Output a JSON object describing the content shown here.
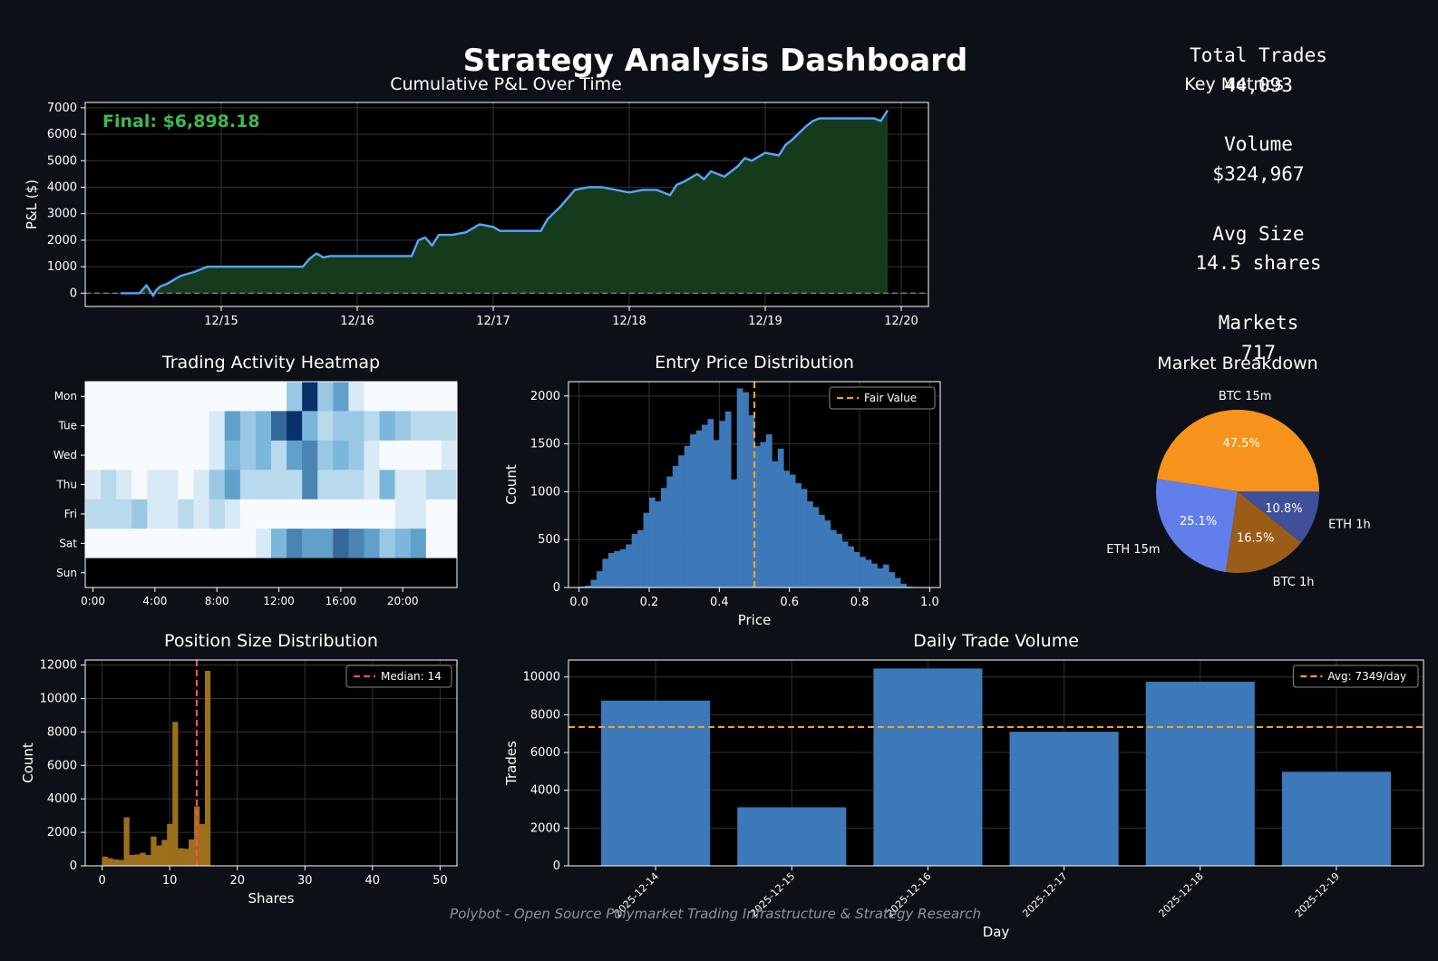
{
  "dashboard": {
    "title": "Strategy Analysis Dashboard",
    "footer": "Polybot - Open Source Polymarket Trading Infrastructure & Strategy Research"
  },
  "colors": {
    "background": "#0d1117",
    "plot_bg": "#000000",
    "pnl_line": "#58a6ff",
    "pnl_fill": "#163a1c",
    "final_text": "#3fb950",
    "bars_blue": "#3d78b8",
    "bars_gold": "#9b6f1c",
    "fair_value": "#f0a030",
    "median": "#f85149",
    "pie": [
      "#f7931a",
      "#627eea",
      "#9a5c16",
      "#3f4f9a"
    ]
  },
  "metrics": {
    "header": "Key Metrics",
    "items": [
      {
        "label": "Total Trades",
        "value": "44,093"
      },
      {
        "label": "Volume",
        "value": "$324,967"
      },
      {
        "label": "Avg Size",
        "value": "14.5 shares"
      },
      {
        "label": "Markets",
        "value": "717"
      }
    ]
  },
  "chart_data": [
    {
      "id": "pnl",
      "type": "area",
      "title": "Cumulative P&L Over Time",
      "ylabel": "P&L ($)",
      "annotation": "Final: $6,898.18",
      "ylim": [
        -500,
        7200
      ],
      "xlim": [
        14.0,
        20.2
      ],
      "x_ticks": [
        {
          "v": 15,
          "label": "12/15"
        },
        {
          "v": 16,
          "label": "12/16"
        },
        {
          "v": 17,
          "label": "12/17"
        },
        {
          "v": 18,
          "label": "12/18"
        },
        {
          "v": 19,
          "label": "12/19"
        },
        {
          "v": 20,
          "label": "12/20"
        }
      ],
      "y_ticks": [
        0,
        1000,
        2000,
        3000,
        4000,
        5000,
        6000,
        7000
      ],
      "baseline": 0,
      "x": [
        14.26,
        14.4,
        14.45,
        14.5,
        14.52,
        14.55,
        14.6,
        14.65,
        14.7,
        14.8,
        14.9,
        14.96,
        15.0,
        15.2,
        15.6,
        15.65,
        15.7,
        15.75,
        15.8,
        16.1,
        16.4,
        16.45,
        16.5,
        16.55,
        16.6,
        16.7,
        16.8,
        16.9,
        17.0,
        17.05,
        17.1,
        17.35,
        17.4,
        17.5,
        17.6,
        17.7,
        17.8,
        18.0,
        18.1,
        18.2,
        18.3,
        18.35,
        18.4,
        18.5,
        18.55,
        18.6,
        18.7,
        18.8,
        18.85,
        18.9,
        19.0,
        19.1,
        19.15,
        19.2,
        19.3,
        19.35,
        19.4,
        19.6,
        19.8,
        19.85,
        19.9
      ],
      "y": [
        0,
        0,
        300,
        -100,
        100,
        250,
        350,
        500,
        650,
        800,
        1000,
        1000,
        1000,
        1000,
        1000,
        1300,
        1500,
        1350,
        1400,
        1400,
        1400,
        2000,
        2100,
        1800,
        2200,
        2200,
        2300,
        2600,
        2500,
        2350,
        2350,
        2350,
        2800,
        3300,
        3900,
        4000,
        4000,
        3800,
        3900,
        3900,
        3700,
        4100,
        4200,
        4500,
        4300,
        4600,
        4400,
        4800,
        5100,
        5000,
        5300,
        5200,
        5600,
        5800,
        6300,
        6500,
        6600,
        6600,
        6600,
        6500,
        6900
      ]
    },
    {
      "id": "heatmap",
      "type": "heatmap",
      "title": "Trading Activity Heatmap",
      "rows": [
        "Mon",
        "Tue",
        "Wed",
        "Thu",
        "Fri",
        "Sat",
        "Sun"
      ],
      "x_ticks": [
        "0:00",
        "4:00",
        "8:00",
        "12:00",
        "16:00",
        "20:00"
      ],
      "x_tick_hours": [
        0,
        4,
        8,
        12,
        16,
        20
      ],
      "hours": 24,
      "values": [
        [
          0,
          0,
          0,
          0,
          0,
          0,
          0,
          0,
          0,
          0,
          0,
          0,
          0,
          3,
          9,
          3,
          5,
          1,
          0,
          0,
          0,
          0,
          0,
          0
        ],
        [
          0,
          0,
          0,
          0,
          0,
          0,
          0,
          0,
          1,
          5,
          3,
          4,
          7,
          9,
          4,
          2,
          3,
          3,
          2,
          4,
          3,
          2,
          2,
          2
        ],
        [
          0,
          0,
          0,
          0,
          0,
          0,
          0,
          0,
          1,
          4,
          3,
          4,
          2,
          5,
          6,
          3,
          4,
          3,
          1,
          0,
          0,
          0,
          0,
          1
        ],
        [
          1,
          2,
          1,
          0,
          1,
          1,
          0,
          1,
          3,
          5,
          2,
          2,
          2,
          2,
          6,
          2,
          2,
          2,
          1,
          4,
          1,
          1,
          2,
          2
        ],
        [
          2,
          2,
          2,
          3,
          1,
          1,
          2,
          1,
          2,
          1,
          0,
          0,
          0,
          0,
          0,
          0,
          0,
          0,
          0,
          0,
          1,
          1,
          0,
          0
        ],
        [
          0,
          0,
          0,
          0,
          0,
          0,
          0,
          0,
          0,
          0,
          0,
          1,
          4,
          6,
          5,
          5,
          7,
          6,
          5,
          3,
          4,
          5,
          0,
          0
        ],
        [
          null,
          null,
          null,
          null,
          null,
          null,
          null,
          null,
          null,
          null,
          null,
          null,
          null,
          null,
          null,
          null,
          null,
          null,
          null,
          null,
          null,
          null,
          null,
          null
        ]
      ],
      "vmax": 9
    },
    {
      "id": "entry",
      "type": "bar",
      "title": "Entry Price Distribution",
      "xlabel": "Price",
      "ylabel": "Count",
      "xlim": [
        -0.03,
        1.03
      ],
      "ylim": [
        0,
        2150
      ],
      "x_ticks": [
        0.0,
        0.2,
        0.4,
        0.6,
        0.8,
        1.0
      ],
      "x_tick_labels": [
        "0.0",
        "0.2",
        "0.4",
        "0.6",
        "0.8",
        "1.0"
      ],
      "y_ticks": [
        0,
        500,
        1000,
        1500,
        2000
      ],
      "bin_start": 0.0,
      "bin_width": 0.01667,
      "values": [
        10,
        20,
        80,
        170,
        300,
        360,
        380,
        400,
        450,
        560,
        600,
        780,
        940,
        900,
        1040,
        1160,
        1270,
        1380,
        1480,
        1600,
        1640,
        1700,
        1760,
        1540,
        1740,
        1840,
        1130,
        2080,
        2040,
        1800,
        1480,
        1520,
        1600,
        1320,
        1450,
        1220,
        1180,
        1090,
        1030,
        900,
        840,
        760,
        700,
        600,
        560,
        480,
        430,
        370,
        320,
        290,
        250,
        200,
        240,
        160,
        100,
        40,
        10
      ],
      "reference": {
        "x": 0.5,
        "label": "Fair Value"
      }
    },
    {
      "id": "pie",
      "type": "pie",
      "title": "Market Breakdown",
      "labels": [
        "BTC 15m",
        "ETH 15m",
        "BTC 1h",
        "ETH 1h"
      ],
      "values": [
        47.5,
        25.1,
        16.5,
        10.8
      ],
      "pct_labels": [
        "47.5%",
        "25.1%",
        "16.5%",
        "10.8%"
      ],
      "start_angle": 0,
      "direction": "counterclockwise"
    },
    {
      "id": "position",
      "type": "bar",
      "title": "Position Size Distribution",
      "xlabel": "Shares",
      "ylabel": "Count",
      "xlim": [
        -2.5,
        52.5
      ],
      "ylim": [
        0,
        12300
      ],
      "x_ticks": [
        0,
        10,
        20,
        30,
        40,
        50
      ],
      "x_tick_labels": [
        "0",
        "10",
        "20",
        "30",
        "40",
        "50"
      ],
      "y_ticks": [
        0,
        2000,
        4000,
        6000,
        8000,
        10000,
        12000
      ],
      "bin_start": 0,
      "bin_width": 0.8,
      "values": [
        550,
        450,
        380,
        350,
        2900,
        650,
        680,
        780,
        650,
        1750,
        1220,
        1550,
        2500,
        8600,
        1050,
        1020,
        1580,
        3550,
        2500,
        11650
      ],
      "reference": {
        "x": 14,
        "label": "Median: 14"
      }
    },
    {
      "id": "daily",
      "type": "bar",
      "title": "Daily Trade Volume",
      "xlabel": "Day",
      "ylabel": "Trades",
      "ylim": [
        0,
        10900
      ],
      "y_ticks": [
        0,
        2000,
        4000,
        6000,
        8000,
        10000
      ],
      "categories": [
        "2025-12-14",
        "2025-12-15",
        "2025-12-16",
        "2025-12-17",
        "2025-12-18",
        "2025-12-19"
      ],
      "values": [
        8750,
        3100,
        10450,
        7100,
        9750,
        4980
      ],
      "reference": {
        "y": 7349,
        "label": "Avg: 7349/day"
      }
    }
  ]
}
